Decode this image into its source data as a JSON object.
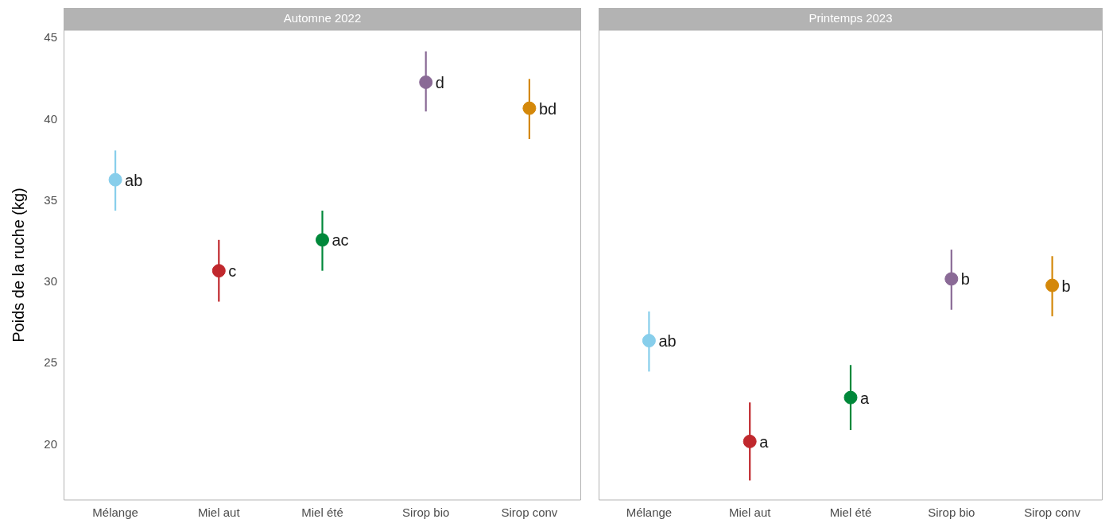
{
  "chart_data": [
    {
      "type": "scatter",
      "title": "Automne 2022",
      "ylabel": "Poids de la ruche (kg)",
      "categories": [
        "Mélange",
        "Miel aut",
        "Miel été",
        "Sirop bio",
        "Sirop conv"
      ],
      "values": [
        36.3,
        30.7,
        32.6,
        42.3,
        40.7
      ],
      "colors": [
        "#87ceeb",
        "#c0282d",
        "#00883a",
        "#8a6a96",
        "#d4880a"
      ],
      "errors": [
        [
          34.4,
          38.1
        ],
        [
          28.8,
          32.6
        ],
        [
          30.7,
          34.4
        ],
        [
          40.5,
          44.2
        ],
        [
          38.8,
          42.5
        ]
      ],
      "value_labels": [
        "ab",
        "c",
        "ac",
        "d",
        "bd"
      ],
      "marker": "circle",
      "ylim": [
        16.6,
        45.5
      ],
      "yticks": [
        20,
        25,
        30,
        35,
        40,
        45
      ]
    },
    {
      "type": "scatter",
      "title": "Printemps 2023",
      "categories": [
        "Mélange",
        "Miel aut",
        "Miel été",
        "Sirop bio",
        "Sirop conv"
      ],
      "values": [
        26.4,
        20.2,
        22.9,
        30.2,
        29.8
      ],
      "colors": [
        "#87ceeb",
        "#c0282d",
        "#00883a",
        "#8a6a96",
        "#d4880a"
      ],
      "errors": [
        [
          24.5,
          28.2
        ],
        [
          17.8,
          22.6
        ],
        [
          20.9,
          24.9
        ],
        [
          28.3,
          32.0
        ],
        [
          27.9,
          31.6
        ]
      ],
      "value_labels": [
        "ab",
        "a",
        "a",
        "b",
        "b"
      ],
      "marker": "circle",
      "ylim": [
        16.6,
        45.5
      ],
      "yticks": [
        20,
        25,
        30,
        35,
        40,
        45
      ],
      "tick_labels": "x"
    }
  ]
}
